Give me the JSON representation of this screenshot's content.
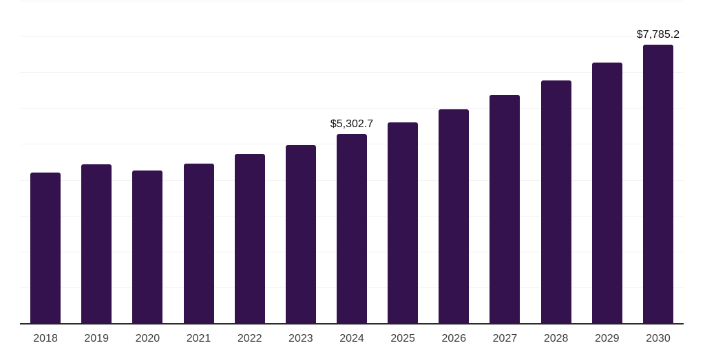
{
  "chart": {
    "background_color": "#ffffff",
    "bar_color": "#33124d",
    "gridline_color": "#f3f3f3",
    "axis_line_color": "#2b2b2b",
    "tick_label_color": "#3d3d3d",
    "data_label_color": "#111111"
  },
  "chart_data": {
    "type": "bar",
    "title": "",
    "xlabel": "",
    "ylabel": "",
    "categories": [
      "2018",
      "2019",
      "2020",
      "2021",
      "2022",
      "2023",
      "2024",
      "2025",
      "2026",
      "2027",
      "2028",
      "2029",
      "2030"
    ],
    "values": [
      4215,
      4455,
      4275,
      4465,
      4740,
      4995,
      5302.7,
      5630,
      5995,
      6385,
      6800,
      7290,
      7785.2
    ],
    "data_labels": {
      "2024": "$5,302.7",
      "2030": "$7,785.2"
    },
    "ylim": [
      0,
      9000
    ],
    "gridline_step": 1000,
    "grid": true,
    "legend_position": "none",
    "y_axis_labels_visible": false
  }
}
